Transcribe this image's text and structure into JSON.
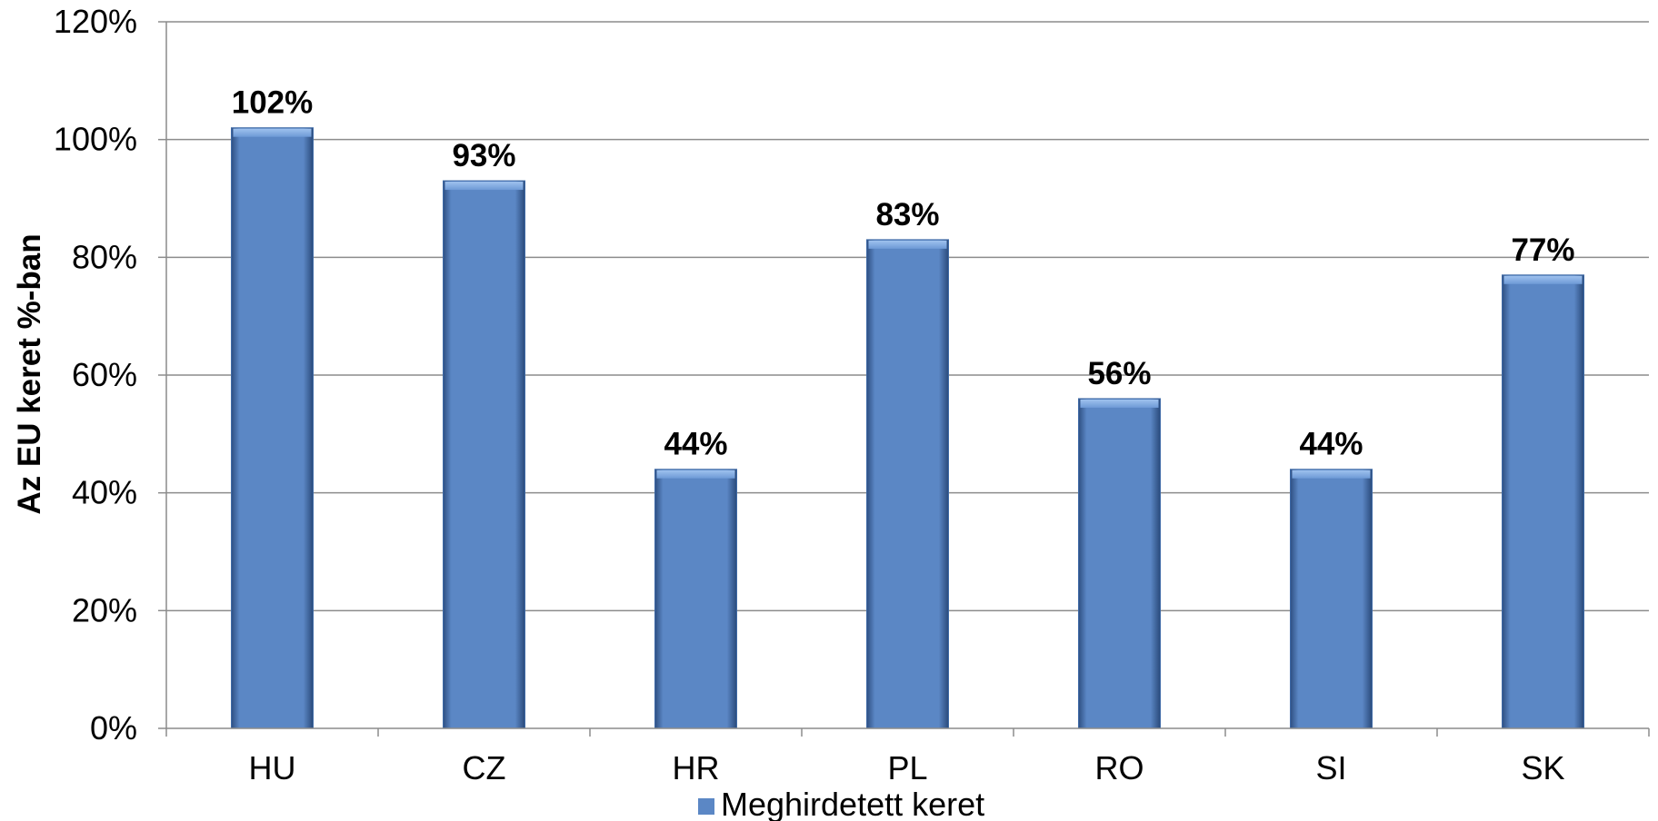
{
  "chart_data": {
    "type": "bar",
    "categories": [
      "HU",
      "CZ",
      "HR",
      "PL",
      "RO",
      "SI",
      "SK"
    ],
    "series": [
      {
        "name": "Meghirdetett keret",
        "values": [
          102,
          93,
          44,
          83,
          56,
          44,
          77
        ],
        "color": "#5B87C5"
      }
    ],
    "data_labels": [
      "102%",
      "93%",
      "44%",
      "83%",
      "56%",
      "44%",
      "77%"
    ],
    "ylabel": "Az EU keret %-ban",
    "ylim": [
      0,
      120
    ],
    "yticks": [
      0,
      20,
      40,
      60,
      80,
      100,
      120
    ],
    "ytick_labels": [
      "0%",
      "20%",
      "40%",
      "60%",
      "80%",
      "100%",
      "120%"
    ],
    "grid": true,
    "legend_position": "bottom"
  }
}
